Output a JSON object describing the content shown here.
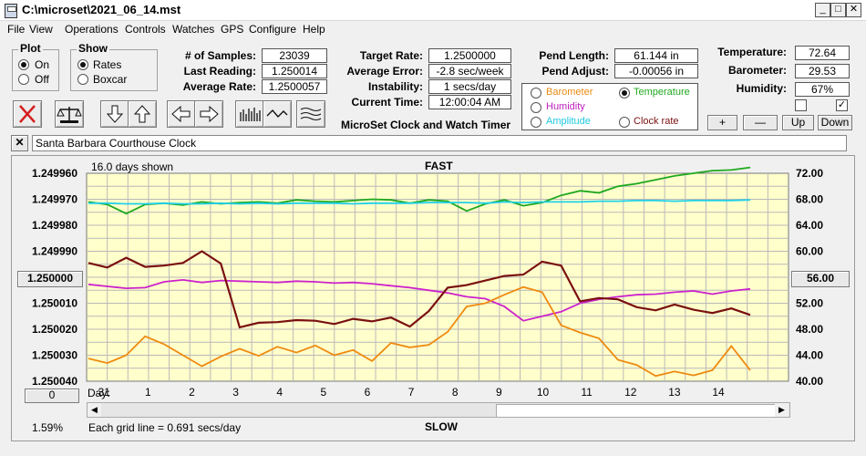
{
  "window": {
    "title": "C:\\microset\\2021_06_14.mst"
  },
  "menu": [
    "File",
    "View",
    "Operations",
    "Controls",
    "Watches",
    "GPS",
    "Configure",
    "Help"
  ],
  "plot": {
    "legend": "Plot",
    "options": [
      "On",
      "Off"
    ],
    "selected": "On"
  },
  "show": {
    "legend": "Show",
    "options": [
      "Rates",
      "Boxcar"
    ],
    "selected": "Rates"
  },
  "stats": {
    "samples_label": "# of Samples:",
    "samples": "23039",
    "last_label": "Last Reading:",
    "last": "1.250014",
    "avg_label": "Average Rate:",
    "avg": "1.2500057",
    "target_label": "Target Rate:",
    "target": "1.2500000",
    "avgerr_label": "Average Error:",
    "avgerr": "-2.8 sec/week",
    "instab_label": "Instability:",
    "instab": "1 secs/day",
    "time_label": "Current Time:",
    "time": "12:00:04 AM",
    "pendlen_label": "Pend Length:",
    "pendlen": "61.144 in",
    "pendadj_label": "Pend Adjust:",
    "pendadj": "-0.00056 in",
    "temp_label": "Temperature:",
    "temp": "72.64",
    "baro_label": "Barometer:",
    "baro": "29.53",
    "hum_label": "Humidity:",
    "hum": "67%"
  },
  "app_caption": "MicroSet Clock and Watch Timer",
  "trace_options": [
    {
      "label": "Barometer",
      "color": "#e88a10",
      "selected": false
    },
    {
      "label": "Temperature",
      "color": "#1fa81f",
      "selected": true
    },
    {
      "label": "Humidity",
      "color": "#c020c0",
      "selected": false
    },
    {
      "label": "Clock rate",
      "color": "#7a1010",
      "selected": false
    },
    {
      "label": "Amplitude",
      "color": "#20c8e0",
      "selected": false
    }
  ],
  "scale_buttons": [
    "+",
    "—",
    "Up",
    "Down"
  ],
  "toolbar_icons": [
    "close-red-x-icon",
    "scale-icon",
    "arrow-down-icon",
    "arrow-up-icon",
    "arrow-left-icon",
    "arrow-right-icon",
    "bar-graph-icon",
    "wave-icon",
    "multi-wave-icon"
  ],
  "watch_name": "Santa Barbara Courthouse Clock",
  "graph": {
    "days_shown": "16.0 days shown",
    "top_label": "FAST",
    "bottom_label": "SLOW",
    "grid_note": "Each grid line = 0.691 secs/day",
    "percent": "1.59%",
    "left_value_button": "1.250000",
    "right_value_button": "56.00",
    "zero_button": "0",
    "day_prefix": "Day:",
    "bg_color": "#ffffcc"
  },
  "chart_data": {
    "type": "line",
    "y_left_ticks": [
      "1.249960",
      "1.249970",
      "1.249980",
      "1.249990",
      "1.250000",
      "1.250010",
      "1.250020",
      "1.250030",
      "1.250040"
    ],
    "y_right_ticks": [
      "72.00",
      "68.00",
      "64.00",
      "60.00",
      "56.00",
      "52.00",
      "48.00",
      "44.00",
      "40.00"
    ],
    "x_ticks": [
      "31",
      "1",
      "2",
      "3",
      "4",
      "5",
      "6",
      "7",
      "8",
      "9",
      "10",
      "11",
      "12",
      "13",
      "14"
    ],
    "x_start_day": 30.6,
    "x_end_day": 46.6,
    "series": [
      {
        "color": "#1fa81f",
        "y": [
          67.6,
          67.2,
          65.8,
          67.2,
          67.4,
          67.1,
          67.6,
          67.3,
          67.5,
          67.6,
          67.4,
          67.9,
          67.7,
          67.6,
          67.8,
          68.0,
          67.9,
          67.4,
          67.9,
          67.7,
          66.2,
          67.3,
          67.9,
          67.0,
          67.5,
          68.6,
          69.3,
          69.0,
          70.0,
          70.4,
          71.0,
          71.6,
          72.0,
          72.4,
          72.5,
          72.9
        ]
      },
      {
        "color": "#20d0e8",
        "y": [
          67.4,
          67.4,
          67.3,
          67.3,
          67.4,
          67.3,
          67.3,
          67.4,
          67.3,
          67.4,
          67.3,
          67.4,
          67.4,
          67.4,
          67.3,
          67.4,
          67.4,
          67.4,
          67.5,
          67.5,
          67.5,
          67.4,
          67.6,
          67.5,
          67.6,
          67.6,
          67.6,
          67.7,
          67.7,
          67.8,
          67.8,
          67.7,
          67.8,
          67.8,
          67.8,
          67.9
        ]
      },
      {
        "color": "#cc22cc",
        "y": [
          54.9,
          54.6,
          54.3,
          54.4,
          55.3,
          55.6,
          55.2,
          55.5,
          55.4,
          55.3,
          55.2,
          55.4,
          55.3,
          55.1,
          55.2,
          55.0,
          54.7,
          54.4,
          54.0,
          53.6,
          53.0,
          52.7,
          51.5,
          49.3,
          50.0,
          50.7,
          52.0,
          52.6,
          53.0,
          53.3,
          53.4,
          53.7,
          53.9,
          53.4,
          53.9,
          54.2
        ]
      },
      {
        "color": "#ee8a10",
        "y": [
          43.5,
          42.8,
          44.0,
          46.9,
          45.7,
          44.0,
          42.3,
          43.8,
          45.0,
          43.9,
          45.3,
          44.4,
          45.5,
          44.0,
          44.8,
          43.1,
          45.9,
          45.2,
          45.6,
          47.6,
          51.5,
          52.0,
          53.3,
          54.5,
          53.7,
          48.6,
          47.5,
          46.6,
          43.3,
          42.5,
          40.8,
          41.5,
          40.9,
          41.7,
          45.4,
          41.7
        ]
      },
      {
        "color": "#7a1010",
        "y": [
          58.2,
          57.5,
          59.0,
          57.6,
          57.8,
          58.2,
          60.0,
          58.1,
          48.3,
          49.0,
          49.1,
          49.4,
          49.3,
          48.8,
          49.6,
          49.2,
          49.8,
          48.4,
          50.8,
          54.4,
          54.8,
          55.5,
          56.2,
          56.4,
          58.4,
          57.8,
          52.3,
          52.8,
          52.6,
          51.4,
          50.9,
          51.8,
          51.0,
          50.5,
          51.2,
          50.2
        ]
      }
    ]
  }
}
